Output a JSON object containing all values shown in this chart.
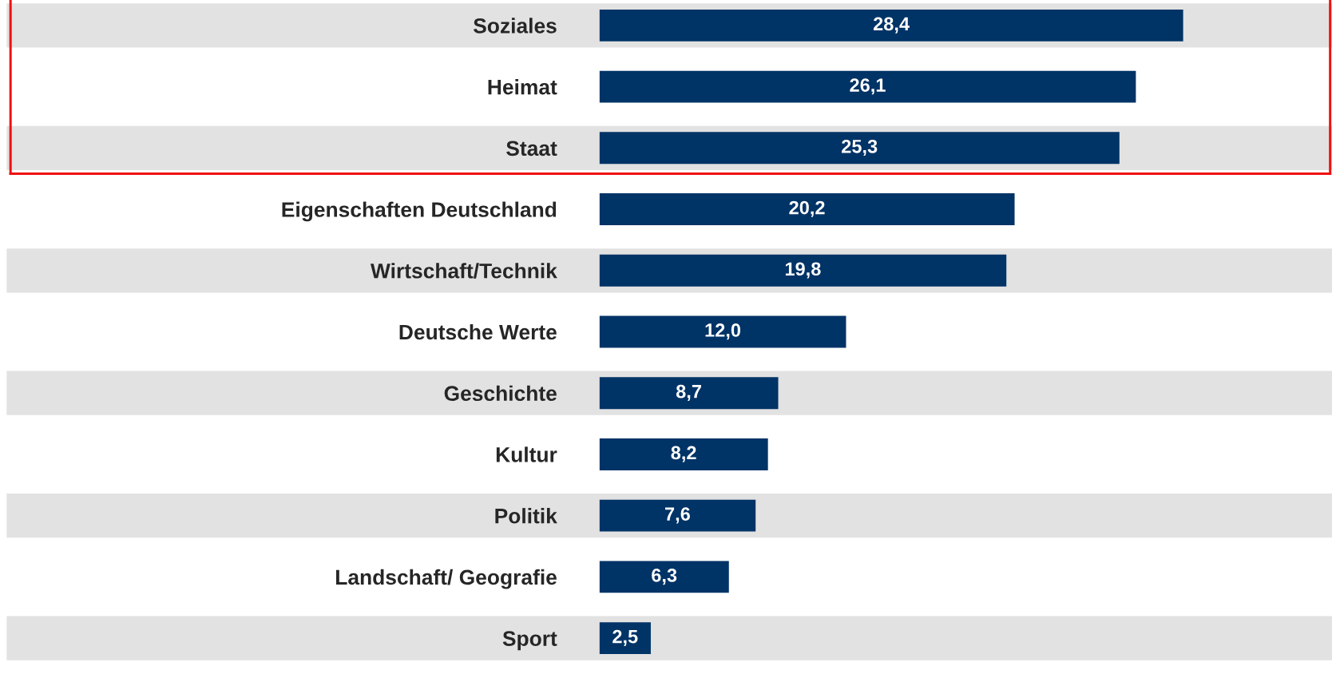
{
  "chart_data": {
    "type": "bar",
    "orientation": "horizontal",
    "categories": [
      "Soziales",
      "Heimat",
      "Staat",
      "Eigenschaften Deutschland",
      "Wirtschaft/Technik",
      "Deutsche Werte",
      "Geschichte",
      "Kultur",
      "Politik",
      "Landschaft/ Geografie",
      "Sport"
    ],
    "values": [
      28.4,
      26.1,
      25.3,
      20.2,
      19.8,
      12.0,
      8.7,
      8.2,
      7.6,
      6.3,
      2.5
    ],
    "value_labels": [
      "28,4",
      "26,1",
      "25,3",
      "20,2",
      "19,8",
      "12,0",
      "8,7",
      "8,2",
      "7,6",
      "6,3",
      "2,5"
    ],
    "color": "#003366",
    "tick_labels": "y",
    "grid": false
  }
}
